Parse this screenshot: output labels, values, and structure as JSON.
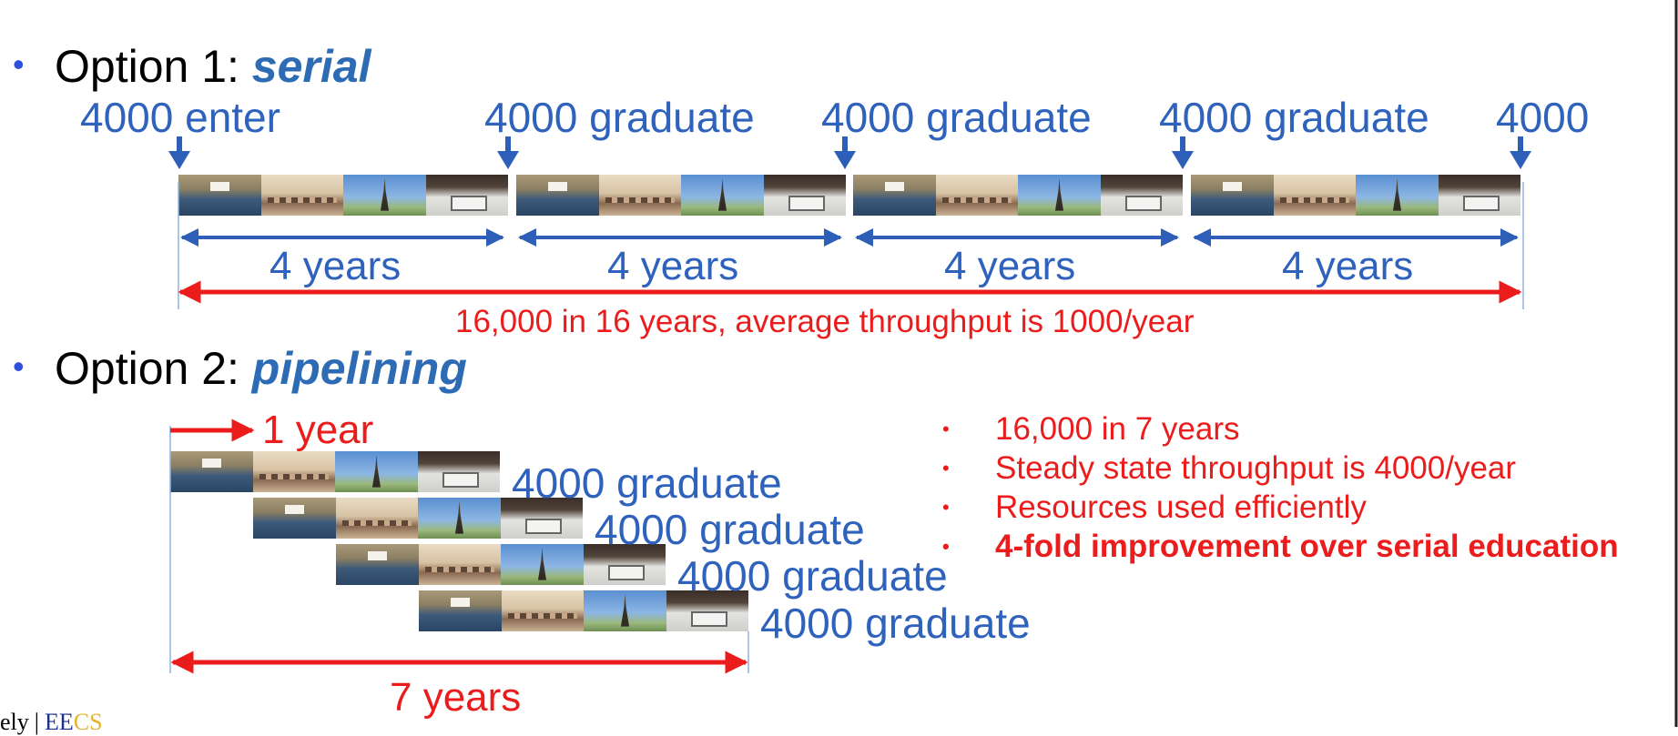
{
  "option1": {
    "bullet": "•",
    "prefix": "Option 1: ",
    "emphasis": "serial",
    "top_labels": [
      "4000 enter",
      "4000 graduate",
      "4000 graduate",
      "4000 graduate",
      "4000"
    ],
    "segment_labels": [
      "4 years",
      "4 years",
      "4 years",
      "4 years"
    ],
    "summary": "16,000 in 16 years, average throughput is 1000/year"
  },
  "option2": {
    "bullet": "•",
    "prefix": "Option 2: ",
    "emphasis": "pipelining",
    "step_label": "1 year",
    "graduate_labels": [
      "4000 graduate",
      "4000 graduate",
      "4000 graduate",
      "4000 graduate"
    ],
    "total_label": "7 years",
    "notes": [
      {
        "bullet": "•",
        "text": "16,000 in 7 years"
      },
      {
        "bullet": "•",
        "text": "Steady state throughput is 4000/year"
      },
      {
        "bullet": "•",
        "text": "Resources used efficiently"
      },
      {
        "bullet": "•",
        "text": "4-fold improvement over serial education"
      }
    ]
  },
  "footer": {
    "partial_text": "ely",
    "logo_part1": "EE",
    "logo_part2": "CS"
  },
  "colors": {
    "blue_text": "#2e62bc",
    "blue_arrow": "#2d5fb8",
    "red": "#ea1c1c",
    "bullet_blue": "#2f4fd8"
  },
  "stage_icons": [
    "lecture-hall",
    "classroom",
    "eiffel-tower",
    "lab"
  ]
}
